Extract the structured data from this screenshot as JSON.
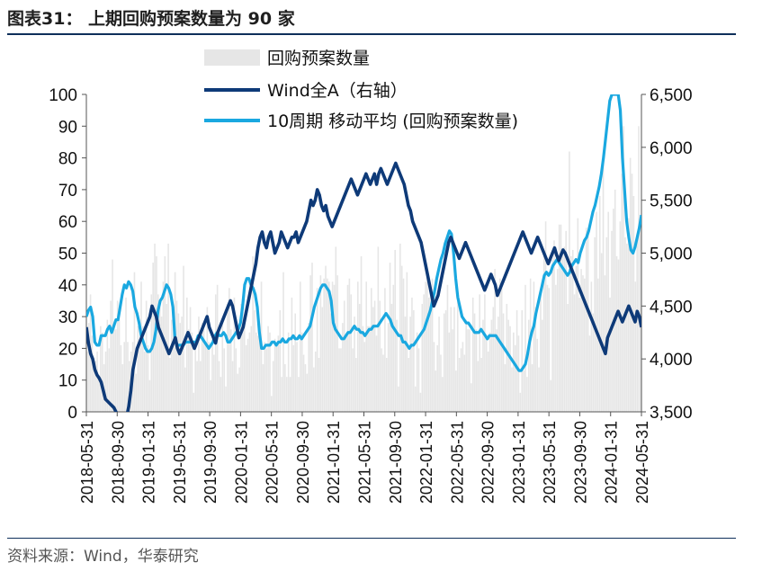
{
  "header": {
    "title": "图表31： 上期回购预案数量为 90 家"
  },
  "footer": {
    "source": "资料来源：Wind，华泰研究"
  },
  "colors": {
    "bars": "#e6e6e6",
    "wind": "#0e3a78",
    "ma": "#1aa8e0",
    "axis": "#555555",
    "rule": "#0e2f5a"
  },
  "chart_data": {
    "type": "bar+line",
    "title": "上期回购预案数量为 90 家",
    "x_tick_labels": [
      "2018-05-31",
      "2018-09-30",
      "2019-01-31",
      "2019-05-31",
      "2019-09-30",
      "2020-01-31",
      "2020-05-31",
      "2020-09-30",
      "2021-01-31",
      "2021-05-31",
      "2021-09-30",
      "2022-01-31",
      "2022-05-31",
      "2022-09-30",
      "2023-01-31",
      "2023-05-31",
      "2023-09-30",
      "2024-01-31",
      "2024-05-31"
    ],
    "y_left": {
      "label": "回购预案数量",
      "range": [
        0,
        100
      ],
      "ticks": [
        "0",
        "10",
        "20",
        "30",
        "40",
        "50",
        "60",
        "70",
        "80",
        "90",
        "100"
      ]
    },
    "y_right": {
      "label": "Wind全A",
      "range": [
        3500,
        6500
      ],
      "ticks": [
        "3,500",
        "4,000",
        "4,500",
        "5,000",
        "5,500",
        "6,000",
        "6,500"
      ]
    },
    "series": [
      {
        "name": "回购预案数量",
        "type": "bar",
        "axis": "left",
        "values": [
          19,
          28,
          37,
          24,
          13,
          16,
          19,
          11,
          27,
          25,
          15,
          19,
          29,
          20,
          35,
          48,
          28,
          26,
          35,
          29,
          21,
          15,
          22,
          36,
          22,
          16,
          19,
          22,
          44,
          12,
          27,
          22,
          41,
          27,
          19,
          35,
          21,
          10,
          37,
          47,
          53,
          49,
          37,
          33,
          30,
          41,
          49,
          34,
          53,
          17,
          29,
          29,
          44,
          35,
          31,
          28,
          30,
          46,
          14,
          36,
          26,
          33,
          25,
          6,
          20,
          16,
          30,
          16,
          28,
          26,
          22,
          33,
          22,
          10,
          23,
          18,
          37,
          40,
          16,
          11,
          29,
          20,
          8,
          34,
          39,
          26,
          16,
          36,
          20,
          12,
          14,
          34,
          34,
          29,
          21,
          23,
          25,
          27,
          49,
          32,
          25,
          24,
          27,
          41,
          15,
          22,
          20,
          27,
          25,
          5,
          16,
          23,
          21,
          24,
          32,
          11,
          44,
          15,
          11,
          25,
          11,
          36,
          21,
          31,
          22,
          11,
          41,
          25,
          18,
          15,
          12,
          28,
          43,
          47,
          14,
          19,
          39,
          17,
          43,
          33,
          42,
          46,
          42,
          41,
          31,
          41,
          40,
          52,
          43,
          20,
          20,
          28,
          35,
          24,
          40,
          42,
          37,
          20,
          30,
          17,
          41,
          34,
          49,
          27,
          22,
          41,
          27,
          27,
          39,
          33,
          35,
          24,
          52,
          35,
          20,
          18,
          39,
          17,
          28,
          47,
          34,
          40,
          51,
          29,
          8,
          53,
          46,
          42,
          30,
          44,
          17,
          30,
          36,
          32,
          8,
          25,
          20,
          6,
          34,
          37,
          41,
          44,
          36,
          38,
          42,
          22,
          13,
          21,
          30,
          18,
          11,
          31,
          32,
          40,
          25,
          33,
          26,
          33,
          13,
          37,
          17,
          20,
          22,
          18,
          29,
          26,
          26,
          9,
          36,
          31,
          26,
          16,
          37,
          17,
          29,
          37,
          24,
          19,
          25,
          29,
          33,
          45,
          26,
          30,
          42,
          39,
          31,
          15,
          34,
          29,
          27,
          14,
          25,
          21,
          32,
          24,
          6,
          32,
          13,
          40,
          11,
          29,
          42,
          15,
          41,
          33,
          23,
          14,
          37,
          29,
          50,
          60,
          40,
          39,
          10,
          48,
          54,
          40,
          45,
          59,
          59,
          50,
          52,
          57,
          34,
          82,
          49,
          51,
          37,
          46,
          61,
          36,
          45,
          43,
          42,
          58,
          57,
          24,
          41,
          31,
          55,
          63,
          42,
          68,
          50,
          81,
          43,
          55,
          63,
          36,
          57,
          64,
          70,
          49,
          48,
          60,
          75,
          90,
          55,
          53,
          61,
          80,
          75,
          68,
          41,
          56,
          90,
          60
        ]
      },
      {
        "name": "Wind全A（右轴）",
        "type": "line",
        "axis": "right",
        "values": [
          4300,
          4150,
          4050,
          4000,
          3900,
          3850,
          3820,
          3780,
          3700,
          3620,
          3600,
          3580,
          3560,
          3540,
          3500,
          3450,
          3420,
          3400,
          3380,
          3450,
          3550,
          3700,
          3900,
          4000,
          4100,
          4150,
          4200,
          4250,
          4300,
          4350,
          4400,
          4500,
          4450,
          4400,
          4300,
          4250,
          4200,
          4150,
          4100,
          4050,
          4100,
          4150,
          4200,
          4100,
          4050,
          4100,
          4150,
          4200,
          4250,
          4200,
          4150,
          4100,
          4150,
          4200,
          4250,
          4300,
          4350,
          4400,
          4300,
          4250,
          4200,
          4150,
          4250,
          4300,
          4350,
          4400,
          4450,
          4500,
          4550,
          4500,
          4400,
          4300,
          4200,
          4250,
          4300,
          4400,
          4500,
          4600,
          4700,
          4800,
          4900,
          5050,
          5150,
          5200,
          5100,
          5050,
          5150,
          5200,
          5100,
          5000,
          5050,
          5100,
          5200,
          5150,
          5100,
          5050,
          5100,
          5150,
          5150,
          5200,
          5100,
          5150,
          5200,
          5250,
          5300,
          5400,
          5500,
          5450,
          5500,
          5600,
          5550,
          5450,
          5400,
          5450,
          5350,
          5300,
          5250,
          5300,
          5350,
          5400,
          5450,
          5500,
          5550,
          5600,
          5650,
          5700,
          5650,
          5600,
          5550,
          5600,
          5650,
          5700,
          5750,
          5700,
          5650,
          5700,
          5750,
          5650,
          5750,
          5800,
          5750,
          5700,
          5650,
          5700,
          5750,
          5800,
          5850,
          5800,
          5750,
          5700,
          5650,
          5550,
          5450,
          5400,
          5300,
          5250,
          5200,
          5150,
          5100,
          5000,
          4900,
          4800,
          4700,
          4600,
          4500,
          4550,
          4600,
          4700,
          4800,
          4900,
          5000,
          5100,
          5150,
          5100,
          5050,
          5000,
          4950,
          5000,
          5050,
          5100,
          5050,
          5000,
          4950,
          4900,
          4850,
          4800,
          4750,
          4700,
          4650,
          4700,
          4750,
          4800,
          4750,
          4700,
          4600,
          4650,
          4700,
          4750,
          4800,
          4850,
          4900,
          4950,
          5000,
          5050,
          5100,
          5150,
          5200,
          5150,
          5100,
          5050,
          5000,
          5050,
          5100,
          5150,
          5100,
          5050,
          5000,
          4950,
          4900,
          4950,
          5000,
          5050,
          4980,
          4930,
          4980,
          5030,
          5000,
          4950,
          4900,
          4850,
          4800,
          4750,
          4700,
          4650,
          4600,
          4550,
          4500,
          4450,
          4400,
          4350,
          4300,
          4250,
          4200,
          4150,
          4100,
          4050,
          4200,
          4250,
          4300,
          4350,
          4400,
          4450,
          4400,
          4350,
          4400,
          4450,
          4500,
          4450,
          4400,
          4350,
          4450,
          4400,
          4300
        ]
      },
      {
        "name": "10周期 移动平均 (回购预案数量)",
        "type": "line",
        "axis": "left",
        "values": [
          30,
          32,
          33,
          30,
          22,
          21,
          21,
          24,
          24,
          24,
          26,
          27,
          25,
          27,
          29,
          29,
          33,
          37,
          40,
          39,
          41,
          40,
          38,
          33,
          31,
          28,
          24,
          22,
          20,
          19,
          19,
          20,
          22,
          26,
          32,
          35,
          36,
          38,
          40,
          39,
          37,
          33,
          23,
          21,
          21,
          21,
          21,
          22,
          22,
          22,
          22,
          22,
          22,
          24,
          24,
          23,
          22,
          21,
          20,
          21,
          22,
          24,
          25,
          24,
          24,
          25,
          24,
          22,
          22,
          23,
          24,
          25,
          26,
          28,
          33,
          40,
          42,
          42,
          40,
          39,
          37,
          33,
          25,
          20,
          20,
          21,
          21,
          21,
          22,
          22,
          21,
          22,
          22,
          23,
          22,
          22,
          23,
          23,
          24,
          23,
          23,
          24,
          23,
          24,
          25,
          26,
          27,
          30,
          33,
          35,
          37,
          39,
          40,
          40,
          39,
          38,
          35,
          28,
          26,
          25,
          24,
          23,
          23,
          24,
          25,
          25,
          26,
          27,
          26,
          26,
          25,
          25,
          24,
          25,
          26,
          26,
          27,
          27,
          27,
          28,
          29,
          30,
          31,
          30,
          29,
          27,
          26,
          25,
          24,
          24,
          22,
          22,
          21,
          20,
          21,
          21,
          22,
          23,
          24,
          25,
          26,
          28,
          30,
          32,
          35,
          38,
          42,
          45,
          48,
          50,
          53,
          55,
          57,
          56,
          50,
          42,
          36,
          33,
          30,
          29,
          28,
          28,
          27,
          26,
          25,
          25,
          25,
          26,
          25,
          24,
          23,
          24,
          24,
          24,
          24,
          23,
          22,
          21,
          20,
          19,
          18,
          17,
          16,
          15,
          14,
          13,
          13,
          14,
          15,
          18,
          22,
          25,
          27,
          31,
          34,
          37,
          40,
          43,
          44,
          43,
          44,
          46,
          47,
          48,
          47,
          46,
          45,
          44,
          43,
          44,
          46,
          47,
          48,
          47,
          50,
          52,
          54,
          55,
          57,
          60,
          63,
          65,
          68,
          71,
          75,
          80,
          86,
          92,
          98,
          100,
          100,
          100,
          100,
          95,
          80,
          70,
          60,
          55,
          51,
          50,
          52,
          55,
          58,
          62
        ]
      }
    ],
    "legend": [
      "回购预案数量",
      "Wind全A（右轴）",
      "10周期 移动平均 (回购预案数量)"
    ],
    "legend_placement": "top-center",
    "grid": false
  }
}
